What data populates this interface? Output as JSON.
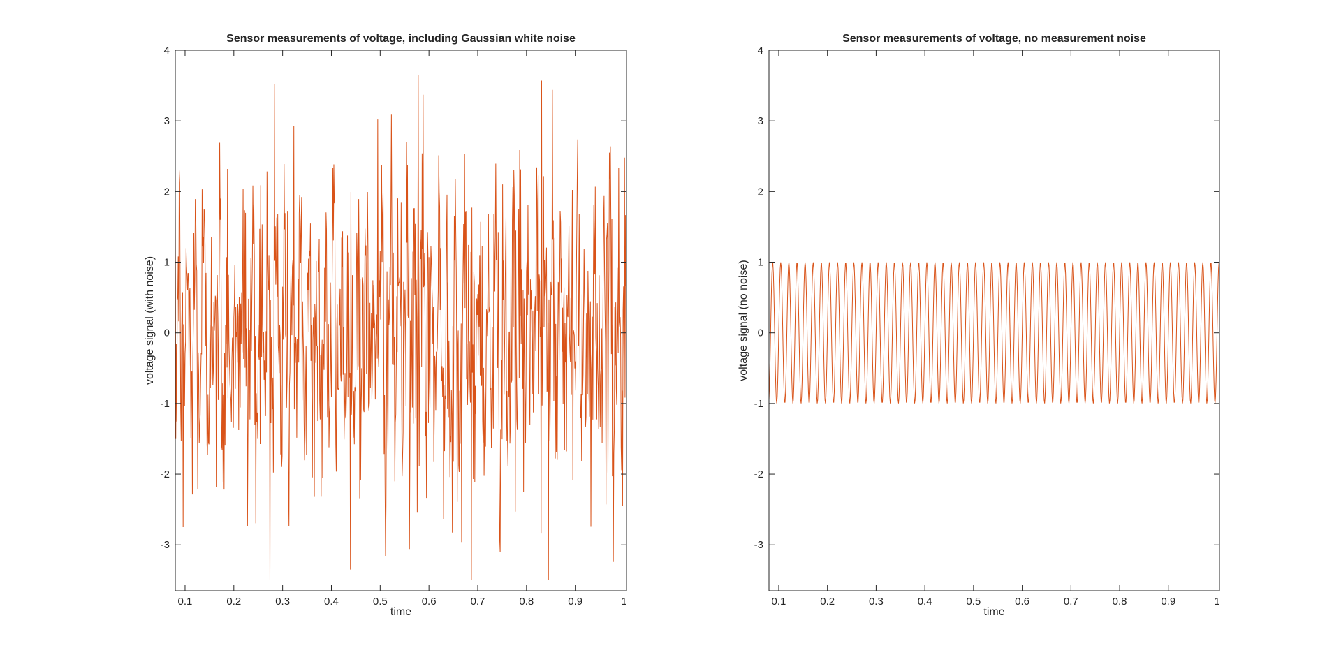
{
  "figure": {
    "background": "#ffffff",
    "line_color": "#d95319",
    "axis_color": "#262626"
  },
  "chart_data": [
    {
      "type": "line",
      "title": "Sensor measurements of voltage, including Gaussian white noise",
      "xlabel": "time",
      "ylabel": "voltage signal (with noise)",
      "xlim": [
        0.08,
        1.005
      ],
      "ylim": [
        -3.65,
        4
      ],
      "xticks": [
        0.1,
        0.2,
        0.3,
        0.4,
        0.5,
        0.6,
        0.7,
        0.8,
        0.9,
        1
      ],
      "xtick_labels": [
        "0.1",
        "0.2",
        "0.3",
        "0.4",
        "0.5",
        "0.6",
        "0.7",
        "0.8",
        "0.9",
        "1"
      ],
      "yticks": [
        -3,
        -2,
        -1,
        0,
        1,
        2,
        3,
        4
      ],
      "ytick_labels": [
        "-3",
        "-2",
        "-1",
        "0",
        "1",
        "2",
        "3",
        "4"
      ],
      "grid": false,
      "series": [
        {
          "color": "#d95319",
          "description": "1 Hz-spaced sampled sinusoid (about 60 cycles per unit time, amplitude 1) plus Gaussian white noise (std about 1); values range roughly -3.5 to 3.65",
          "sample_rate": 1000,
          "signal": {
            "amplitude": 1,
            "frequency": 60
          },
          "noise_std": 1.0,
          "peaks": [
            {
              "x": 0.283,
              "y": 3.52
            },
            {
              "x": 0.578,
              "y": 3.65
            },
            {
              "x": 0.831,
              "y": 3.57
            },
            {
              "x": 0.323,
              "y": 2.93
            },
            {
              "x": 0.495,
              "y": 3.02
            },
            {
              "x": 0.687,
              "y": -3.53
            },
            {
              "x": 0.096,
              "y": -2.75
            },
            {
              "x": 0.667,
              "y": -2.96
            }
          ]
        }
      ]
    },
    {
      "type": "line",
      "title": "Sensor measurements of voltage, no measurement noise",
      "xlabel": "time",
      "ylabel": "voltage signal (no noise)",
      "xlim": [
        0.08,
        1.005
      ],
      "ylim": [
        -3.65,
        4
      ],
      "xticks": [
        0.1,
        0.2,
        0.3,
        0.4,
        0.5,
        0.6,
        0.7,
        0.8,
        0.9,
        1
      ],
      "xtick_labels": [
        "0.1",
        "0.2",
        "0.3",
        "0.4",
        "0.5",
        "0.6",
        "0.7",
        "0.8",
        "0.9",
        "1"
      ],
      "yticks": [
        -3,
        -2,
        -1,
        0,
        1,
        2,
        3,
        4
      ],
      "ytick_labels": [
        "-3",
        "-2",
        "-1",
        "0",
        "1",
        "2",
        "3",
        "4"
      ],
      "grid": false,
      "series": [
        {
          "color": "#d95319",
          "description": "pure sinusoid, amplitude 1, about 60 cycles per unit time",
          "sample_rate": 1000,
          "signal": {
            "amplitude": 1,
            "frequency": 60
          },
          "noise_std": 0
        }
      ]
    }
  ]
}
